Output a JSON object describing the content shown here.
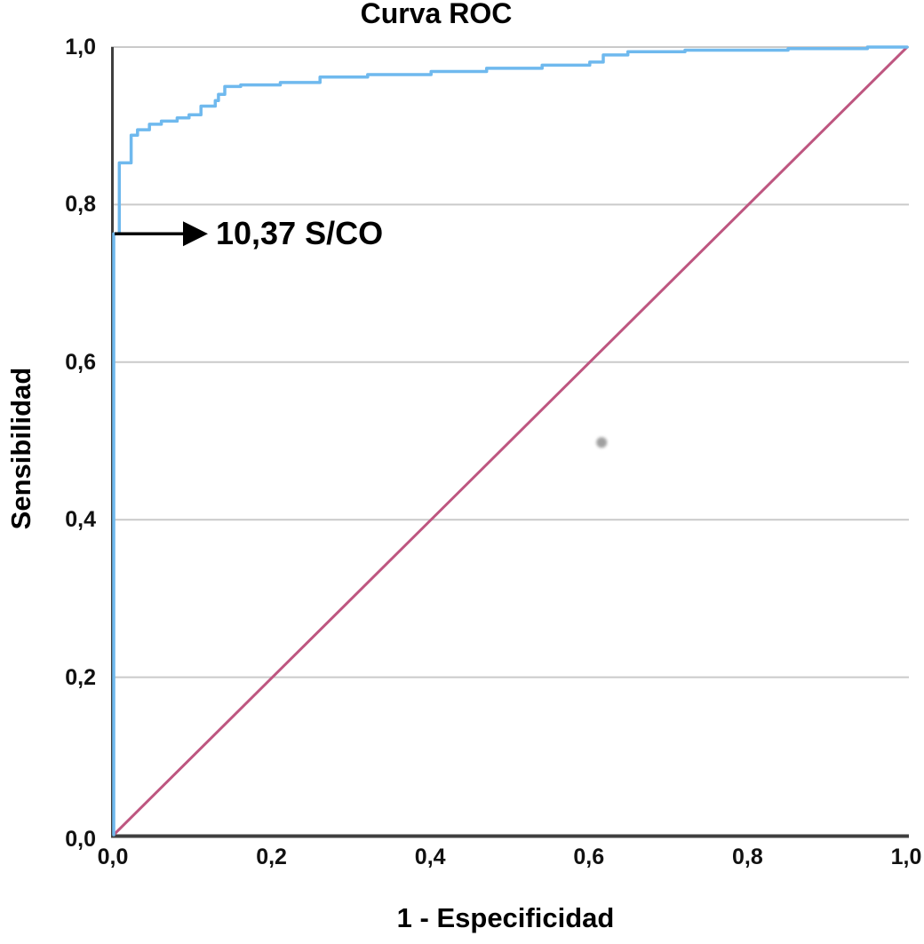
{
  "title": "Curva ROC",
  "chart_data": {
    "type": "line",
    "title": "Curva ROC",
    "xlabel": "1 - Especificidad",
    "ylabel": "Sensibilidad",
    "xlim": [
      0,
      1
    ],
    "ylim": [
      0,
      1
    ],
    "grid": "horizontal-only",
    "legend": "none",
    "x_ticks": [
      {
        "value": 0.0,
        "label": "0,0"
      },
      {
        "value": 0.2,
        "label": "0,2"
      },
      {
        "value": 0.4,
        "label": "0,4"
      },
      {
        "value": 0.6,
        "label": "0,6"
      },
      {
        "value": 0.8,
        "label": "0,8"
      },
      {
        "value": 1.0,
        "label": "1,0"
      }
    ],
    "y_ticks": [
      {
        "value": 0.0,
        "label": "0,0"
      },
      {
        "value": 0.2,
        "label": "0,2"
      },
      {
        "value": 0.4,
        "label": "0,4"
      },
      {
        "value": 0.6,
        "label": "0,6"
      },
      {
        "value": 0.8,
        "label": "0,8"
      },
      {
        "value": 1.0,
        "label": "1,0"
      }
    ],
    "series": [
      {
        "name": "curva-roc",
        "style": "step-line",
        "color": "#6FB9EE",
        "points": [
          [
            0,
            0
          ],
          [
            0,
            0.763
          ],
          [
            0.007,
            0.763
          ],
          [
            0.007,
            0.853
          ],
          [
            0.022,
            0.853
          ],
          [
            0.022,
            0.888
          ],
          [
            0.03,
            0.888
          ],
          [
            0.03,
            0.895
          ],
          [
            0.045,
            0.895
          ],
          [
            0.045,
            0.902
          ],
          [
            0.06,
            0.902
          ],
          [
            0.06,
            0.906
          ],
          [
            0.08,
            0.906
          ],
          [
            0.08,
            0.91
          ],
          [
            0.095,
            0.91
          ],
          [
            0.095,
            0.914
          ],
          [
            0.11,
            0.914
          ],
          [
            0.11,
            0.925
          ],
          [
            0.128,
            0.925
          ],
          [
            0.128,
            0.932
          ],
          [
            0.132,
            0.932
          ],
          [
            0.132,
            0.94
          ],
          [
            0.14,
            0.94
          ],
          [
            0.14,
            0.95
          ],
          [
            0.16,
            0.95
          ],
          [
            0.16,
            0.952
          ],
          [
            0.21,
            0.952
          ],
          [
            0.21,
            0.955
          ],
          [
            0.26,
            0.955
          ],
          [
            0.26,
            0.962
          ],
          [
            0.32,
            0.962
          ],
          [
            0.32,
            0.965
          ],
          [
            0.4,
            0.965
          ],
          [
            0.4,
            0.969
          ],
          [
            0.47,
            0.969
          ],
          [
            0.47,
            0.973
          ],
          [
            0.54,
            0.973
          ],
          [
            0.54,
            0.977
          ],
          [
            0.6,
            0.977
          ],
          [
            0.6,
            0.981
          ],
          [
            0.617,
            0.981
          ],
          [
            0.617,
            0.99
          ],
          [
            0.648,
            0.99
          ],
          [
            0.648,
            0.994
          ],
          [
            0.72,
            0.994
          ],
          [
            0.72,
            0.996
          ],
          [
            0.85,
            0.996
          ],
          [
            0.85,
            0.998
          ],
          [
            0.95,
            0.998
          ],
          [
            0.95,
            1
          ],
          [
            1,
            1
          ]
        ]
      },
      {
        "name": "linea-referencia-diagonal",
        "style": "line",
        "color": "#BE5680",
        "points": [
          [
            0,
            0
          ],
          [
            1,
            1
          ]
        ]
      }
    ],
    "annotation": {
      "label": "10,37 S/CO",
      "arrow_from_sensitivity": 0.763,
      "arrow_color": "#000000"
    },
    "stray_mark": {
      "x": 0.615,
      "y": 0.498,
      "color": "#8F8F8F"
    },
    "colors": {
      "axis": "#3F3F3F",
      "gridline": "#CACACA",
      "curve": "#6FB9EE",
      "diagonal": "#BE5680",
      "text": "#000000"
    }
  }
}
